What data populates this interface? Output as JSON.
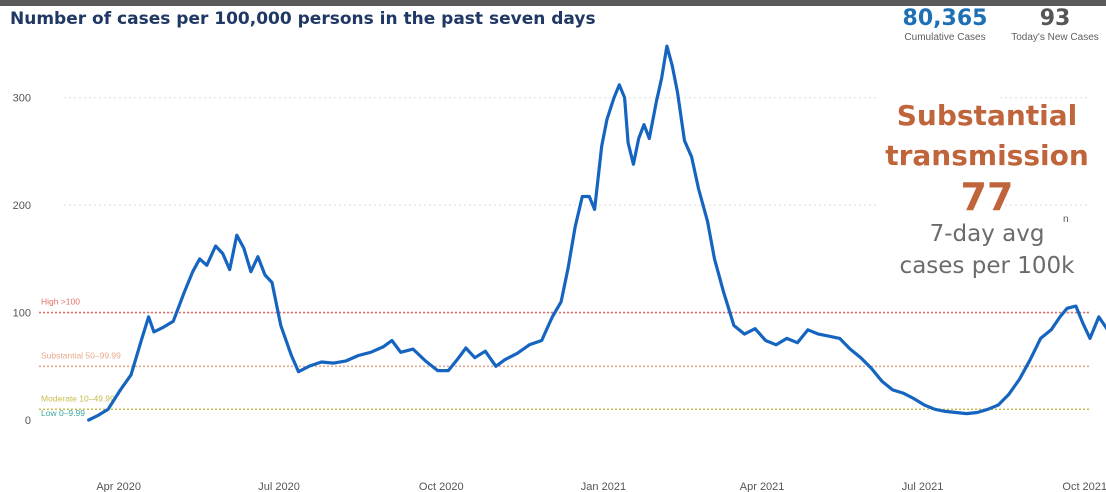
{
  "header": {
    "title": "Number of cases per 100,000 persons in the past seven days"
  },
  "kpis": {
    "cumulative": {
      "value": "80,365",
      "label": "Cumulative Cases",
      "color": "#1f6fb5"
    },
    "new_today": {
      "value": "93",
      "label": "Today's New Cases",
      "color": "#555555"
    }
  },
  "status_panel": {
    "level_line1": "Substantial",
    "level_line2": "transmission",
    "value": "77",
    "sub_line1": "7-day avg",
    "sub_line2": "cases per 100k",
    "stray_char": "n",
    "color": "#c0643b"
  },
  "chart_data": {
    "type": "line",
    "title": "Number of cases per 100,000 persons in the past seven days",
    "xlabel": "",
    "ylabel": "",
    "ylim": [
      0,
      350
    ],
    "yticks": [
      0,
      100,
      200,
      300
    ],
    "xlim": [
      "2020-03-01",
      "2021-10-04"
    ],
    "xticks": [
      {
        "date": "2020-04-01",
        "label": "Apr 2020"
      },
      {
        "date": "2020-07-01",
        "label": "Jul 2020"
      },
      {
        "date": "2020-10-01",
        "label": "Oct 2020"
      },
      {
        "date": "2021-01-01",
        "label": "Jan 2021"
      },
      {
        "date": "2021-04-01",
        "label": "Apr 2021"
      },
      {
        "date": "2021-07-01",
        "label": "Jul 2021"
      },
      {
        "date": "2021-10-01",
        "label": "Oct 2021"
      }
    ],
    "grid": true,
    "thresholds": [
      {
        "label": "High >100",
        "value": 100,
        "color": "#e0706a"
      },
      {
        "label": "Substantial 50–99.99",
        "value": 50,
        "color": "#e8a98a"
      },
      {
        "label": "Moderate 10–49.99",
        "value": 10,
        "color": "#c8bd50"
      },
      {
        "label": "Low 0–9.99",
        "value": 0,
        "color": "#3aa7a0"
      }
    ],
    "series": [
      {
        "color": "#1565c0",
        "points": [
          [
            "2020-03-15",
            0
          ],
          [
            "2020-03-20",
            4
          ],
          [
            "2020-03-26",
            10
          ],
          [
            "2020-04-02",
            28
          ],
          [
            "2020-04-08",
            42
          ],
          [
            "2020-04-14",
            75
          ],
          [
            "2020-04-18",
            96
          ],
          [
            "2020-04-21",
            82
          ],
          [
            "2020-04-26",
            86
          ],
          [
            "2020-05-02",
            92
          ],
          [
            "2020-05-08",
            118
          ],
          [
            "2020-05-13",
            138
          ],
          [
            "2020-05-17",
            150
          ],
          [
            "2020-05-21",
            144
          ],
          [
            "2020-05-26",
            162
          ],
          [
            "2020-05-30",
            155
          ],
          [
            "2020-06-03",
            140
          ],
          [
            "2020-06-07",
            172
          ],
          [
            "2020-06-11",
            160
          ],
          [
            "2020-06-15",
            138
          ],
          [
            "2020-06-19",
            152
          ],
          [
            "2020-06-23",
            135
          ],
          [
            "2020-06-27",
            128
          ],
          [
            "2020-07-02",
            88
          ],
          [
            "2020-07-08",
            60
          ],
          [
            "2020-07-12",
            45
          ],
          [
            "2020-07-18",
            50
          ],
          [
            "2020-07-25",
            54
          ],
          [
            "2020-08-01",
            53
          ],
          [
            "2020-08-08",
            55
          ],
          [
            "2020-08-15",
            60
          ],
          [
            "2020-08-22",
            63
          ],
          [
            "2020-08-29",
            68
          ],
          [
            "2020-09-03",
            74
          ],
          [
            "2020-09-08",
            63
          ],
          [
            "2020-09-15",
            66
          ],
          [
            "2020-09-22",
            55
          ],
          [
            "2020-09-29",
            46
          ],
          [
            "2020-10-05",
            46
          ],
          [
            "2020-10-10",
            56
          ],
          [
            "2020-10-15",
            67
          ],
          [
            "2020-10-20",
            58
          ],
          [
            "2020-10-26",
            64
          ],
          [
            "2020-11-01",
            50
          ],
          [
            "2020-11-06",
            56
          ],
          [
            "2020-11-13",
            62
          ],
          [
            "2020-11-20",
            70
          ],
          [
            "2020-11-27",
            74
          ],
          [
            "2020-12-03",
            96
          ],
          [
            "2020-12-08",
            110
          ],
          [
            "2020-12-12",
            142
          ],
          [
            "2020-12-16",
            180
          ],
          [
            "2020-12-20",
            208
          ],
          [
            "2020-12-24",
            208
          ],
          [
            "2020-12-27",
            196
          ],
          [
            "2020-12-31",
            255
          ],
          [
            "2021-01-03",
            280
          ],
          [
            "2021-01-07",
            300
          ],
          [
            "2021-01-10",
            312
          ],
          [
            "2021-01-13",
            300
          ],
          [
            "2021-01-15",
            258
          ],
          [
            "2021-01-18",
            238
          ],
          [
            "2021-01-21",
            262
          ],
          [
            "2021-01-24",
            275
          ],
          [
            "2021-01-27",
            262
          ],
          [
            "2021-01-31",
            296
          ],
          [
            "2021-02-03",
            318
          ],
          [
            "2021-02-06",
            348
          ],
          [
            "2021-02-09",
            330
          ],
          [
            "2021-02-12",
            305
          ],
          [
            "2021-02-16",
            260
          ],
          [
            "2021-02-20",
            245
          ],
          [
            "2021-02-24",
            215
          ],
          [
            "2021-03-01",
            185
          ],
          [
            "2021-03-05",
            150
          ],
          [
            "2021-03-10",
            120
          ],
          [
            "2021-03-16",
            88
          ],
          [
            "2021-03-22",
            80
          ],
          [
            "2021-03-28",
            85
          ],
          [
            "2021-04-03",
            74
          ],
          [
            "2021-04-09",
            70
          ],
          [
            "2021-04-15",
            76
          ],
          [
            "2021-04-21",
            72
          ],
          [
            "2021-04-27",
            84
          ],
          [
            "2021-05-03",
            80
          ],
          [
            "2021-05-09",
            78
          ],
          [
            "2021-05-15",
            76
          ],
          [
            "2021-05-21",
            66
          ],
          [
            "2021-05-27",
            58
          ],
          [
            "2021-06-02",
            48
          ],
          [
            "2021-06-08",
            36
          ],
          [
            "2021-06-14",
            28
          ],
          [
            "2021-06-20",
            25
          ],
          [
            "2021-06-26",
            20
          ],
          [
            "2021-07-02",
            14
          ],
          [
            "2021-07-08",
            10
          ],
          [
            "2021-07-14",
            8
          ],
          [
            "2021-07-20",
            7
          ],
          [
            "2021-07-26",
            6
          ],
          [
            "2021-08-01",
            7
          ],
          [
            "2021-08-07",
            10
          ],
          [
            "2021-08-13",
            14
          ],
          [
            "2021-08-19",
            24
          ],
          [
            "2021-08-25",
            38
          ],
          [
            "2021-08-31",
            56
          ],
          [
            "2021-09-06",
            76
          ],
          [
            "2021-09-12",
            84
          ],
          [
            "2021-09-17",
            96
          ],
          [
            "2021-09-21",
            104
          ],
          [
            "2021-09-26",
            106
          ],
          [
            "2021-09-30",
            90
          ],
          [
            "2021-10-04",
            76
          ],
          [
            "2021-10-09",
            96
          ],
          [
            "2021-10-14",
            84
          ],
          [
            "2021-10-19",
            80
          ],
          [
            "2021-10-24",
            78
          ],
          [
            "2021-10-28",
            77
          ]
        ]
      }
    ]
  }
}
